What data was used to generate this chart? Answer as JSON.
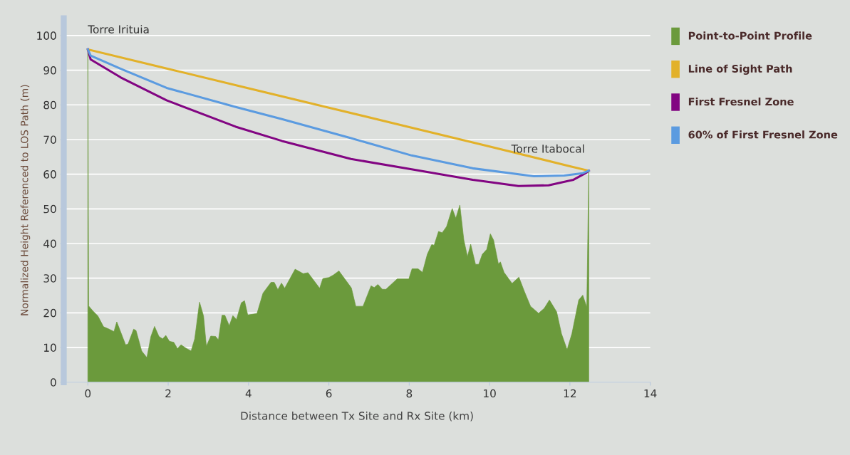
{
  "chart_data": {
    "type": "line",
    "xlabel": "Distance between Tx Site and Rx Site (km)",
    "ylabel": "Normalized Height Referenced to LOS Path (m)",
    "xlim": [
      -0.6,
      14
    ],
    "xticks": [
      0,
      2,
      4,
      6,
      8,
      10,
      12,
      14
    ],
    "ylim": [
      0,
      105
    ],
    "yticks": [
      0,
      10,
      20,
      30,
      40,
      50,
      60,
      70,
      80,
      90,
      100
    ],
    "grid": "y",
    "legend": "right",
    "series": [
      {
        "name": "Point-to-Point Profile",
        "type": "area",
        "color": "#6b9a3c",
        "x": [
          0,
          0.02,
          0.13,
          0.25,
          0.39,
          0.53,
          0.65,
          0.72,
          0.94,
          1.0,
          1.14,
          1.2,
          1.34,
          1.47,
          1.57,
          1.66,
          1.77,
          1.86,
          1.94,
          2.03,
          2.14,
          2.23,
          2.32,
          2.43,
          2.57,
          2.66,
          2.78,
          2.88,
          2.95,
          3.06,
          3.18,
          3.25,
          3.34,
          3.41,
          3.52,
          3.61,
          3.7,
          3.82,
          3.9,
          3.98,
          4.21,
          4.36,
          4.56,
          4.64,
          4.73,
          4.82,
          4.9,
          5.16,
          5.36,
          5.48,
          5.77,
          5.85,
          6.0,
          6.11,
          6.25,
          6.39,
          6.56,
          6.67,
          6.85,
          7.05,
          7.13,
          7.22,
          7.33,
          7.42,
          7.7,
          7.99,
          8.07,
          8.22,
          8.33,
          8.45,
          8.56,
          8.62,
          8.73,
          8.82,
          8.93,
          9.07,
          9.16,
          9.26,
          9.36,
          9.45,
          9.53,
          9.65,
          9.73,
          9.82,
          9.93,
          10.02,
          10.1,
          10.22,
          10.27,
          10.36,
          10.56,
          10.73,
          10.87,
          11.02,
          11.22,
          11.36,
          11.49,
          11.67,
          11.79,
          11.93,
          12.05,
          12.22,
          12.32,
          12.42,
          12.47
        ],
        "values": [
          96,
          22,
          20.5,
          19.1,
          16,
          15.3,
          14.6,
          17.4,
          10.8,
          11,
          15.3,
          14.9,
          9,
          7.1,
          13.2,
          16.1,
          13.2,
          12.5,
          13.5,
          11.8,
          11.5,
          9.7,
          10.8,
          9.9,
          9,
          12.5,
          23.1,
          19.1,
          10.4,
          13.3,
          13.2,
          12.2,
          19.3,
          19.3,
          16.3,
          19.2,
          18.1,
          22.9,
          23.5,
          19.4,
          19.8,
          25.7,
          28.8,
          28.8,
          26.7,
          28.6,
          27.1,
          32.6,
          31.3,
          31.6,
          27.1,
          29.9,
          30.2,
          30.9,
          32.1,
          29.9,
          27.2,
          21.9,
          21.9,
          27.8,
          27.3,
          28.2,
          26.8,
          26.8,
          29.8,
          29.8,
          32.7,
          32.7,
          31.7,
          36.9,
          39.7,
          39.5,
          43.5,
          43.1,
          44.9,
          50.1,
          47.3,
          51.1,
          41,
          36.2,
          39.8,
          34,
          34,
          36.9,
          38.3,
          42.8,
          41,
          34.1,
          34.7,
          31.7,
          28.5,
          30.3,
          26.1,
          21.9,
          19.9,
          21.3,
          23.7,
          20.3,
          14,
          9.4,
          14,
          23.7,
          25.1,
          21.6,
          61
        ]
      },
      {
        "name": "Line of Sight Path",
        "color": "#e2b12a",
        "x": [
          0,
          2,
          4,
          6,
          8,
          10,
          12,
          12.47
        ],
        "values": [
          96,
          90.4,
          84.8,
          79.2,
          73.6,
          68,
          62.3,
          61
        ]
      },
      {
        "name": "First Fresnel Zone",
        "color": "#820582",
        "x": [
          0,
          0.07,
          0.82,
          1.96,
          3.68,
          4.83,
          6.55,
          8.06,
          9.58,
          10.72,
          11.47,
          12.09,
          12.39,
          12.47
        ],
        "values": [
          96,
          93.1,
          87.9,
          81.3,
          73.7,
          69.6,
          64.4,
          61.4,
          58.4,
          56.6,
          56.8,
          58.4,
          60.3,
          61
        ]
      },
      {
        "name": "60% of First Fresnel Zone",
        "color": "#5b9be0",
        "x": [
          0,
          0.07,
          0.82,
          1.96,
          3.68,
          4.83,
          6.55,
          8.06,
          9.58,
          11.1,
          11.86,
          12.32,
          12.47
        ],
        "values": [
          96,
          94.2,
          90.4,
          84.9,
          79.4,
          75.9,
          70.4,
          65.4,
          61.7,
          59.4,
          59.6,
          60.3,
          61
        ]
      }
    ],
    "annotations": [
      {
        "text": "Torre Irituia",
        "x": 0,
        "y": 96
      },
      {
        "text": "Torre Itabocal",
        "x": 12.47,
        "y": 61
      }
    ]
  }
}
